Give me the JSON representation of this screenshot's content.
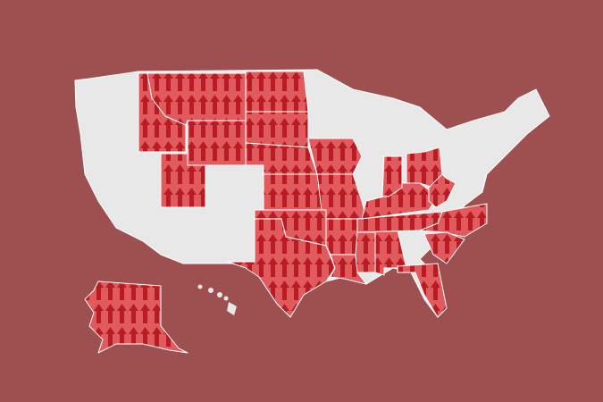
{
  "colors": {
    "background": "#9e5050",
    "base_land": "#e8e8e8",
    "highlight_fill": "#e05a5e",
    "arrow": "#b81c22",
    "border": "#ffffff"
  },
  "legend_icon": "up-arrow-icon",
  "highlighted_states": [
    "ID",
    "MT",
    "WY",
    "ND",
    "SD",
    "NE",
    "UT",
    "KS",
    "OK",
    "TX",
    "IA",
    "MO",
    "AR",
    "LA",
    "MS",
    "AL",
    "TN",
    "KY",
    "IN",
    "OH",
    "WV",
    "NC",
    "SC",
    "FL",
    "AK"
  ]
}
